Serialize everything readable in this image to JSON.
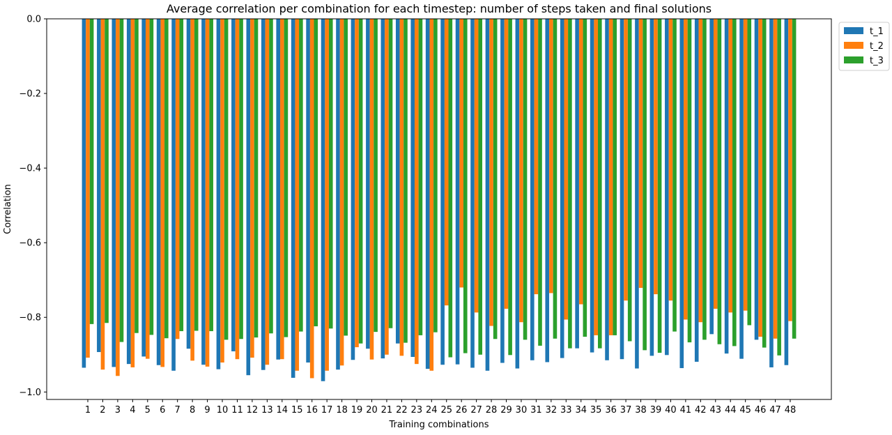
{
  "chart_data": {
    "type": "bar",
    "title": "Average correlation per combination for each timestep: number of steps taken and final solutions",
    "xlabel": "Training combinations",
    "ylabel": "Correlation",
    "ylim": [
      -1.02,
      0.0
    ],
    "yticks": [
      0.0,
      -0.2,
      -0.4,
      -0.6,
      -0.8,
      -1.0
    ],
    "ytick_labels": [
      "0.0",
      "−0.2",
      "−0.4",
      "−0.6",
      "−0.8",
      "−1.0"
    ],
    "grid": false,
    "legend_position": "upper right, outside plot area",
    "categories": [
      "1",
      "2",
      "3",
      "4",
      "5",
      "6",
      "7",
      "8",
      "9",
      "10",
      "11",
      "12",
      "13",
      "14",
      "15",
      "16",
      "17",
      "18",
      "19",
      "20",
      "21",
      "22",
      "23",
      "24",
      "25",
      "26",
      "27",
      "28",
      "29",
      "30",
      "31",
      "32",
      "33",
      "34",
      "35",
      "36",
      "37",
      "38",
      "39",
      "40",
      "41",
      "42",
      "43",
      "44",
      "45",
      "46",
      "47",
      "48"
    ],
    "series": [
      {
        "name": "t_1",
        "color": "#1f77b4",
        "values": [
          -0.935,
          -0.893,
          -0.933,
          -0.925,
          -0.905,
          -0.928,
          -0.943,
          -0.884,
          -0.927,
          -0.939,
          -0.891,
          -0.955,
          -0.941,
          -0.913,
          -0.962,
          -0.921,
          -0.971,
          -0.94,
          -0.914,
          -0.884,
          -0.91,
          -0.87,
          -0.906,
          -0.938,
          -0.927,
          -0.926,
          -0.935,
          -0.943,
          -0.922,
          -0.937,
          -0.915,
          -0.92,
          -0.909,
          -0.883,
          -0.894,
          -0.915,
          -0.912,
          -0.937,
          -0.903,
          -0.901,
          -0.936,
          -0.919,
          -0.845,
          -0.897,
          -0.911,
          -0.86,
          -0.934,
          -0.928
        ]
      },
      {
        "name": "t_2",
        "color": "#ff7f0e",
        "values": [
          -0.908,
          -0.94,
          -0.957,
          -0.934,
          -0.911,
          -0.933,
          -0.858,
          -0.916,
          -0.932,
          -0.921,
          -0.912,
          -0.908,
          -0.927,
          -0.912,
          -0.943,
          -0.963,
          -0.943,
          -0.929,
          -0.88,
          -0.913,
          -0.9,
          -0.903,
          -0.925,
          -0.943,
          -0.768,
          -0.72,
          -0.787,
          -0.823,
          -0.777,
          -0.813,
          -0.738,
          -0.735,
          -0.806,
          -0.765,
          -0.848,
          -0.848,
          -0.755,
          -0.721,
          -0.738,
          -0.755,
          -0.806,
          -0.813,
          -0.777,
          -0.787,
          -0.782,
          -0.852,
          -0.857,
          -0.81
        ]
      },
      {
        "name": "t_3",
        "color": "#2ca02c",
        "values": [
          -0.818,
          -0.815,
          -0.866,
          -0.842,
          -0.847,
          -0.856,
          -0.837,
          -0.836,
          -0.837,
          -0.86,
          -0.858,
          -0.854,
          -0.843,
          -0.853,
          -0.838,
          -0.824,
          -0.83,
          -0.849,
          -0.87,
          -0.839,
          -0.829,
          -0.868,
          -0.848,
          -0.84,
          -0.907,
          -0.896,
          -0.9,
          -0.858,
          -0.901,
          -0.86,
          -0.876,
          -0.857,
          -0.883,
          -0.852,
          -0.883,
          -0.848,
          -0.864,
          -0.888,
          -0.895,
          -0.838,
          -0.867,
          -0.86,
          -0.872,
          -0.877,
          -0.821,
          -0.881,
          -0.902,
          -0.857
        ]
      }
    ]
  }
}
